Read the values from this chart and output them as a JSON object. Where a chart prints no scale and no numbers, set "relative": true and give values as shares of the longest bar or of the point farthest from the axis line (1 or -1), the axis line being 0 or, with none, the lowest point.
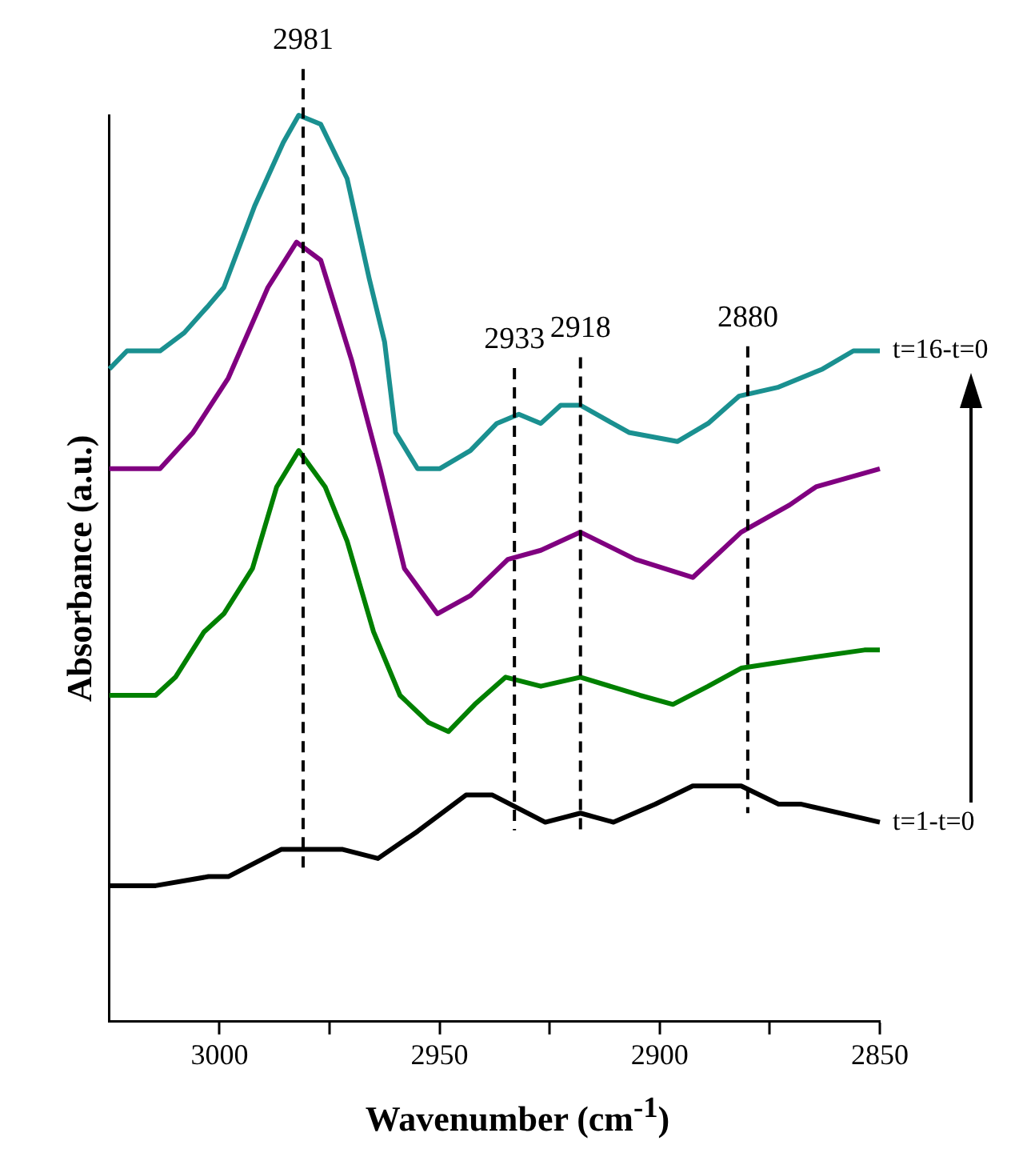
{
  "chart_data": {
    "type": "line",
    "relative": true,
    "xlabel": "Wavenumber (cm$^{-1}$)",
    "ylabel": "Absorbance (a.u.)",
    "xlim": [
      3025,
      2850
    ],
    "xticks": [
      3000,
      {
        "value": 2975,
        "label": null
      },
      2950,
      {
        "value": 2925,
        "label": null
      },
      2900,
      {
        "value": 2875,
        "label": null
      },
      2850
    ],
    "marker": "none",
    "legend": false,
    "grid": false,
    "series": [
      {
        "name": "t=16-t=0",
        "color": "#1a9090",
        "x": [
          3025,
          3021,
          3013.5,
          3008,
          3002.5,
          2999,
          2992,
          2985.5,
          2982,
          2977,
          2971,
          2966,
          2962.5,
          2960,
          2955,
          2950,
          2943,
          2937,
          2932,
          2927,
          2922.5,
          2918,
          2907,
          2896,
          2889,
          2882,
          2873,
          2863,
          2856,
          2850
        ],
        "values": [
          0.72,
          0.74,
          0.74,
          0.76,
          0.79,
          0.81,
          0.9,
          0.97,
          1.0,
          0.99,
          0.93,
          0.82,
          0.75,
          0.65,
          0.61,
          0.61,
          0.63,
          0.66,
          0.67,
          0.66,
          0.68,
          0.68,
          0.65,
          0.64,
          0.66,
          0.69,
          0.7,
          0.72,
          0.74,
          0.74
        ]
      },
      {
        "color": "#800080",
        "x": [
          3025,
          3013.5,
          3006,
          2998,
          2989,
          2982.5,
          2977,
          2970,
          2963.5,
          2958,
          2950.5,
          2943,
          2934.5,
          2927,
          2918,
          2905.5,
          2892.5,
          2881.5,
          2870.5,
          2864.5,
          2850
        ],
        "values": [
          0.61,
          0.61,
          0.65,
          0.71,
          0.81,
          0.86,
          0.84,
          0.73,
          0.61,
          0.5,
          0.45,
          0.47,
          0.51,
          0.52,
          0.54,
          0.51,
          0.49,
          0.54,
          0.57,
          0.59,
          0.61
        ]
      },
      {
        "color": "#008000",
        "x": [
          3025,
          3014.5,
          3010,
          3003.5,
          2999,
          2992.5,
          2987,
          2982,
          2976,
          2971,
          2965,
          2959,
          2952.5,
          2948,
          2942,
          2935,
          2927,
          2918,
          2904.5,
          2897,
          2889,
          2881.5,
          2868,
          2853.5,
          2850
        ],
        "values": [
          0.36,
          0.36,
          0.38,
          0.43,
          0.45,
          0.5,
          0.59,
          0.63,
          0.59,
          0.53,
          0.43,
          0.36,
          0.33,
          0.32,
          0.35,
          0.38,
          0.37,
          0.38,
          0.36,
          0.35,
          0.37,
          0.39,
          0.4,
          0.41,
          0.41
        ]
      },
      {
        "name": "t=1-t=0",
        "color": "#000000",
        "x": [
          3025,
          3014.5,
          3002.5,
          2998,
          2986,
          2972,
          2964,
          2955,
          2944,
          2938,
          2926,
          2918,
          2910.5,
          2901,
          2892.5,
          2881.5,
          2873,
          2868,
          2850
        ],
        "values": [
          0.15,
          0.15,
          0.16,
          0.16,
          0.19,
          0.19,
          0.18,
          0.21,
          0.25,
          0.25,
          0.22,
          0.23,
          0.22,
          0.24,
          0.26,
          0.26,
          0.24,
          0.24,
          0.22
        ]
      }
    ],
    "ref_lines": [
      {
        "axis": "x",
        "value": 2981,
        "label": "2981",
        "color": "#000000",
        "line_style": "dashed"
      },
      {
        "axis": "x",
        "value": 2933,
        "label": "2933",
        "color": "#000000",
        "line_style": "dashed"
      },
      {
        "axis": "x",
        "value": 2918,
        "label": "2918",
        "color": "#000000",
        "line_style": "dashed"
      },
      {
        "axis": "x",
        "value": 2880,
        "label": "2880",
        "color": "#000000",
        "line_style": "dashed"
      }
    ]
  }
}
